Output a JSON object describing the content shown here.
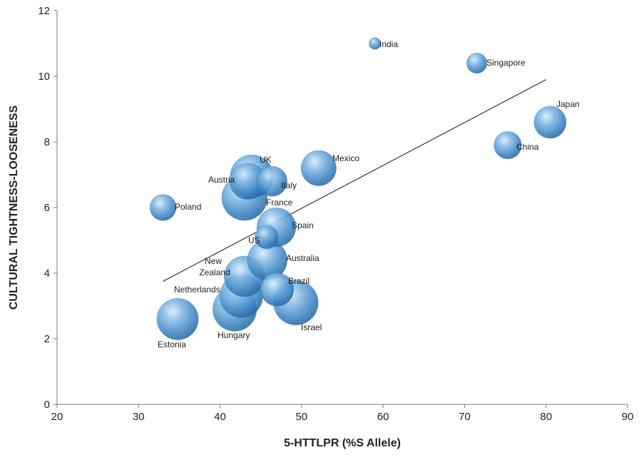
{
  "chart_data": {
    "type": "scatter",
    "variant": "bubble",
    "title": "",
    "xlabel": "5-HTTLPR (%S Allele)",
    "ylabel": "CULTURAL TIGHTNESS-LOOSENESS",
    "xlim": [
      20,
      90
    ],
    "ylim": [
      0,
      12
    ],
    "xticks": [
      20,
      30,
      40,
      50,
      60,
      70,
      80,
      90
    ],
    "yticks": [
      0,
      2,
      4,
      6,
      8,
      10,
      12
    ],
    "grid": false,
    "legend": "none",
    "bubble_color": "#4a90c8",
    "points": [
      {
        "label": "India",
        "x": 59.0,
        "y": 11.0,
        "size": 0.1
      },
      {
        "label": "Singapore",
        "x": 71.5,
        "y": 10.4,
        "size": 0.3
      },
      {
        "label": "Japan",
        "x": 80.5,
        "y": 8.6,
        "size": 0.75
      },
      {
        "label": "China",
        "x": 75.3,
        "y": 7.9,
        "size": 0.55
      },
      {
        "label": "Mexico",
        "x": 52.1,
        "y": 7.2,
        "size": 0.9
      },
      {
        "label": "UK",
        "x": 43.9,
        "y": 6.95,
        "size": 1.35
      },
      {
        "label": "Austria",
        "x": 43.4,
        "y": 6.8,
        "size": 0.95
      },
      {
        "label": "Italy",
        "x": 46.4,
        "y": 6.8,
        "size": 0.65
      },
      {
        "label": "France",
        "x": 43.0,
        "y": 6.3,
        "size": 1.5
      },
      {
        "label": "Poland",
        "x": 33.0,
        "y": 6.0,
        "size": 0.5
      },
      {
        "label": "Spain",
        "x": 46.9,
        "y": 5.4,
        "size": 1.1
      },
      {
        "label": "US",
        "x": 45.7,
        "y": 5.1,
        "size": 0.4
      },
      {
        "label": "Australia",
        "x": 45.8,
        "y": 4.4,
        "size": 1.15
      },
      {
        "label": "New Zealand",
        "x": 43.0,
        "y": 3.9,
        "size": 1.2
      },
      {
        "label": "Brazil",
        "x": 47.0,
        "y": 3.5,
        "size": 0.8
      },
      {
        "label": "Netherlands",
        "x": 42.6,
        "y": 3.3,
        "size": 1.35
      },
      {
        "label": "Israel",
        "x": 49.3,
        "y": 3.1,
        "size": 1.45
      },
      {
        "label": "Hungary",
        "x": 41.8,
        "y": 2.9,
        "size": 1.4
      },
      {
        "label": "Estonia",
        "x": 34.8,
        "y": 2.6,
        "size": 1.25
      }
    ],
    "trendline": {
      "x": [
        33.0,
        80.0
      ],
      "y": [
        3.75,
        9.9
      ]
    }
  }
}
